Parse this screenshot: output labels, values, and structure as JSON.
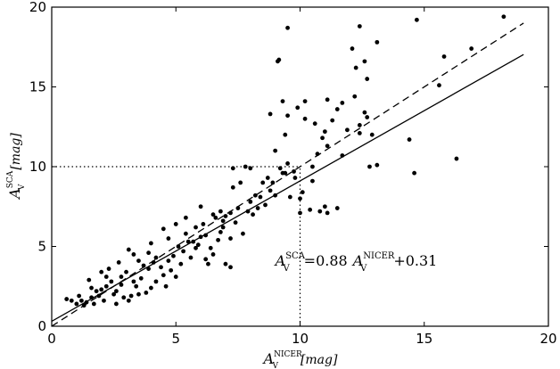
{
  "chart_data": {
    "type": "scatter",
    "xlabel": {
      "main": "A",
      "sup": "NICER",
      "sub": "V",
      "unit": "[mag]"
    },
    "ylabel": {
      "main": "A",
      "sup": "SCA",
      "sub": "V",
      "unit": "[mag]"
    },
    "xlim": [
      0,
      20
    ],
    "ylim": [
      0,
      20
    ],
    "xticks": [
      0,
      5,
      10,
      15,
      20
    ],
    "yticks": [
      0,
      5,
      10,
      15,
      20
    ],
    "grid": false,
    "colors": {
      "points": "#000000",
      "lines": "#000000"
    },
    "fit_line": {
      "slope": 0.88,
      "intercept": 0.31,
      "x_range": [
        0,
        19
      ],
      "style": "solid"
    },
    "one_to_one_line": {
      "slope": 1.0,
      "intercept": 0.0,
      "x_range": [
        0,
        19
      ],
      "style": "dashed"
    },
    "reference_point": {
      "x": 10,
      "y": 10,
      "style": "dotted"
    },
    "annotation": {
      "x": 9.0,
      "y": 3.8,
      "lhs": {
        "main": "A",
        "sup": "SCA",
        "sub": "V"
      },
      "eq": "=0.88",
      "rhs": {
        "main": "A",
        "sup": "NICER",
        "sub": "V"
      },
      "tail": "+0.31"
    },
    "points": [
      [
        18.2,
        19.4
      ],
      [
        14.7,
        19.2
      ],
      [
        12.4,
        18.8
      ],
      [
        9.5,
        18.7
      ],
      [
        12.1,
        17.4
      ],
      [
        16.9,
        17.4
      ],
      [
        13.1,
        17.8
      ],
      [
        15.8,
        16.9
      ],
      [
        12.6,
        16.6
      ],
      [
        9.1,
        16.6
      ],
      [
        9.15,
        16.7
      ],
      [
        12.25,
        16.2
      ],
      [
        12.7,
        15.5
      ],
      [
        15.6,
        15.1
      ],
      [
        9.3,
        14.1
      ],
      [
        10.2,
        14.1
      ],
      [
        11.1,
        14.2
      ],
      [
        9.9,
        13.7
      ],
      [
        12.2,
        14.4
      ],
      [
        11.7,
        14.0
      ],
      [
        11.5,
        13.6
      ],
      [
        8.8,
        13.3
      ],
      [
        9.5,
        13.2
      ],
      [
        10.2,
        13.0
      ],
      [
        10.6,
        12.7
      ],
      [
        11.3,
        12.9
      ],
      [
        11.9,
        12.3
      ],
      [
        12.4,
        12.1
      ],
      [
        12.9,
        12.0
      ],
      [
        12.6,
        13.4
      ],
      [
        12.7,
        13.1
      ],
      [
        12.4,
        12.6
      ],
      [
        11.0,
        12.2
      ],
      [
        9.4,
        12.0
      ],
      [
        10.9,
        11.8
      ],
      [
        14.4,
        11.7
      ],
      [
        11.1,
        11.3
      ],
      [
        10.7,
        10.8
      ],
      [
        11.7,
        10.7
      ],
      [
        9.0,
        11.0
      ],
      [
        10.5,
        10.0
      ],
      [
        9.5,
        10.2
      ],
      [
        9.2,
        9.9
      ],
      [
        9.4,
        9.6
      ],
      [
        9.75,
        9.7
      ],
      [
        8.0,
        9.9
      ],
      [
        7.8,
        10.0
      ],
      [
        7.3,
        9.9
      ],
      [
        12.8,
        10.0
      ],
      [
        13.1,
        10.1
      ],
      [
        14.6,
        9.6
      ],
      [
        16.3,
        10.5
      ],
      [
        8.7,
        9.3
      ],
      [
        8.9,
        9.0
      ],
      [
        10.5,
        9.1
      ],
      [
        9.8,
        9.3
      ],
      [
        8.8,
        8.5
      ],
      [
        7.3,
        8.7
      ],
      [
        7.6,
        9.0
      ],
      [
        10.0,
        8.0
      ],
      [
        10.4,
        7.3
      ],
      [
        11.5,
        7.4
      ],
      [
        11.0,
        7.5
      ],
      [
        10.8,
        7.2
      ],
      [
        11.1,
        7.1
      ],
      [
        10.0,
        7.1
      ],
      [
        8.2,
        8.2
      ],
      [
        8.0,
        7.8
      ],
      [
        8.6,
        7.6
      ],
      [
        8.3,
        7.4
      ],
      [
        9.0,
        8.2
      ],
      [
        9.6,
        8.1
      ],
      [
        10.1,
        8.4
      ],
      [
        8.1,
        7.0
      ],
      [
        7.2,
        7.1
      ],
      [
        6.8,
        7.2
      ],
      [
        6.5,
        7.0
      ],
      [
        7.4,
        6.5
      ],
      [
        6.9,
        6.2
      ],
      [
        7.7,
        5.8
      ],
      [
        7.2,
        5.5
      ],
      [
        6.4,
        4.9
      ],
      [
        6.7,
        5.4
      ],
      [
        6.5,
        4.5
      ],
      [
        6.3,
        3.9
      ],
      [
        7.2,
        3.7
      ],
      [
        7.0,
        3.9
      ],
      [
        5.2,
        3.9
      ],
      [
        6.2,
        4.2
      ],
      [
        5.8,
        4.9
      ],
      [
        6.0,
        5.6
      ],
      [
        5.5,
        5.3
      ],
      [
        5.6,
        4.3
      ],
      [
        5.4,
        5.8
      ],
      [
        5.0,
        3.1
      ],
      [
        4.8,
        3.5
      ],
      [
        4.5,
        3.2
      ],
      [
        4.2,
        2.8
      ],
      [
        4.6,
        2.5
      ],
      [
        3.8,
        2.1
      ],
      [
        3.2,
        1.9
      ],
      [
        6.8,
        5.9
      ],
      [
        5.8,
        6.2
      ],
      [
        6.0,
        7.5
      ],
      [
        5.4,
        6.8
      ],
      [
        5.0,
        6.4
      ],
      [
        4.7,
        5.5
      ],
      [
        4.0,
        5.2
      ],
      [
        4.5,
        6.1
      ],
      [
        4.2,
        4.3
      ],
      [
        3.9,
        3.6
      ],
      [
        3.5,
        4.1
      ],
      [
        3.3,
        4.5
      ],
      [
        4.1,
        4.0
      ],
      [
        3.7,
        3.8
      ],
      [
        3.0,
        3.4
      ],
      [
        2.8,
        3.1
      ],
      [
        3.4,
        2.5
      ],
      [
        2.6,
        2.2
      ],
      [
        2.4,
        2.8
      ],
      [
        2.2,
        2.5
      ],
      [
        2.0,
        2.3
      ],
      [
        1.9,
        1.9
      ],
      [
        1.8,
        2.2
      ],
      [
        1.6,
        1.8
      ],
      [
        1.4,
        1.5
      ],
      [
        1.2,
        1.6
      ],
      [
        1.0,
        1.4
      ],
      [
        0.8,
        1.6
      ],
      [
        0.6,
        1.7
      ],
      [
        1.5,
        2.9
      ],
      [
        2.0,
        3.4
      ],
      [
        2.3,
        3.6
      ],
      [
        2.7,
        4.0
      ],
      [
        3.1,
        4.8
      ],
      [
        2.5,
        2.0
      ],
      [
        3.6,
        3.0
      ],
      [
        4.4,
        3.7
      ],
      [
        4.9,
        4.4
      ],
      [
        5.3,
        4.7
      ],
      [
        3.1,
        1.6
      ],
      [
        2.9,
        1.8
      ],
      [
        2.1,
        1.6
      ],
      [
        1.7,
        1.4
      ],
      [
        1.3,
        1.3
      ],
      [
        2.6,
        1.4
      ],
      [
        3.5,
        2.0
      ],
      [
        4.0,
        2.4
      ],
      [
        2.8,
        2.6
      ],
      [
        1.1,
        1.9
      ],
      [
        1.6,
        2.4
      ],
      [
        2.2,
        3.1
      ],
      [
        3.9,
        4.6
      ],
      [
        5.1,
        5.0
      ],
      [
        5.7,
        5.3
      ],
      [
        6.1,
        6.4
      ],
      [
        6.6,
        6.8
      ],
      [
        7.0,
        6.9
      ],
      [
        7.5,
        7.4
      ],
      [
        7.9,
        7.2
      ],
      [
        8.4,
        8.1
      ],
      [
        6.2,
        5.7
      ],
      [
        3.3,
        2.8
      ],
      [
        4.7,
        4.1
      ],
      [
        5.9,
        5.1
      ],
      [
        6.9,
        6.6
      ],
      [
        8.5,
        9.0
      ],
      [
        9.3,
        9.6
      ]
    ]
  }
}
